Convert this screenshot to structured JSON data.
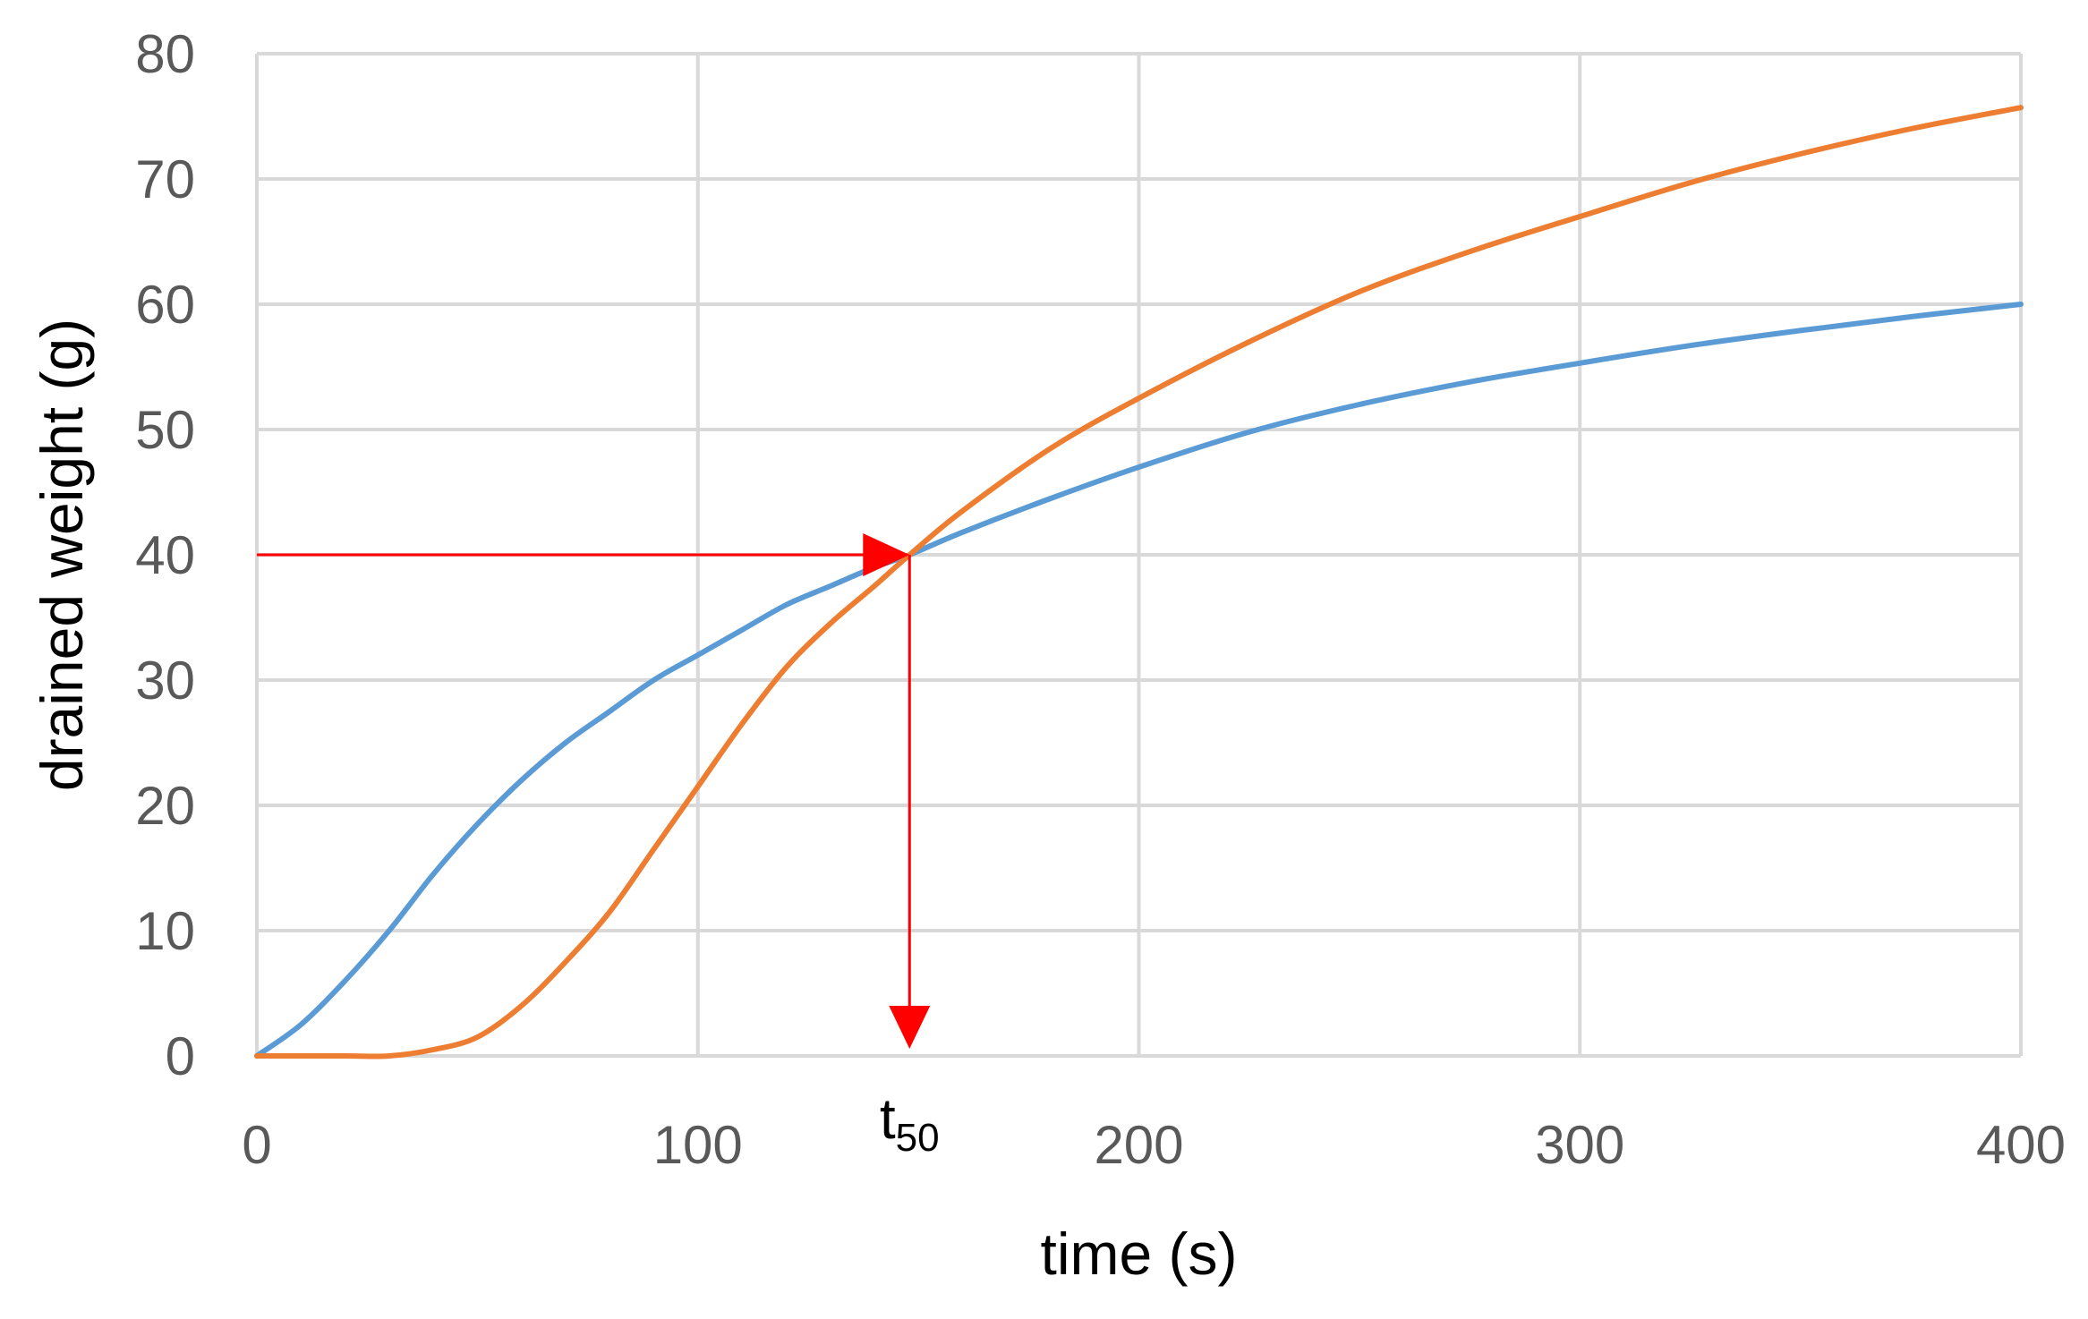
{
  "chart_data": {
    "type": "line",
    "title": "",
    "xlabel": "time (s)",
    "ylabel": "drained weight (g)",
    "xlim": [
      0,
      400
    ],
    "ylim": [
      0,
      80
    ],
    "x_ticks": [
      0,
      100,
      200,
      300,
      400
    ],
    "y_ticks": [
      0,
      10,
      20,
      30,
      40,
      50,
      60,
      70,
      80
    ],
    "grid": true,
    "legend": "none",
    "series": [
      {
        "color": "#5b9bd5",
        "x": [
          0,
          10,
          20,
          30,
          40,
          50,
          60,
          70,
          80,
          90,
          100,
          110,
          120,
          130,
          140,
          148,
          160,
          180,
          200,
          225,
          250,
          275,
          300,
          325,
          350,
          375,
          400
        ],
        "values": [
          0,
          2.5,
          6,
          10,
          14.5,
          18.5,
          22,
          25,
          27.5,
          30,
          32,
          34,
          36,
          37.5,
          39,
          40,
          41.8,
          44.5,
          47,
          49.8,
          52,
          53.8,
          55.3,
          56.7,
          57.9,
          59,
          60
        ]
      },
      {
        "color": "#ed7d31",
        "x": [
          0,
          20,
          30,
          40,
          50,
          60,
          70,
          80,
          90,
          100,
          110,
          120,
          130,
          140,
          148,
          160,
          180,
          200,
          225,
          250,
          275,
          300,
          325,
          350,
          375,
          400
        ],
        "values": [
          0,
          0,
          0,
          0.5,
          1.5,
          4,
          7.5,
          11.5,
          16.5,
          21.5,
          26.5,
          31,
          34.5,
          37.5,
          40,
          43.5,
          48.5,
          52.5,
          57,
          61,
          64.2,
          67,
          69.7,
          72,
          74,
          75.7
        ]
      }
    ],
    "annotation": {
      "label_main": "t",
      "label_sub": "50",
      "x": 148,
      "y": 40,
      "color": "#ff0000"
    }
  }
}
